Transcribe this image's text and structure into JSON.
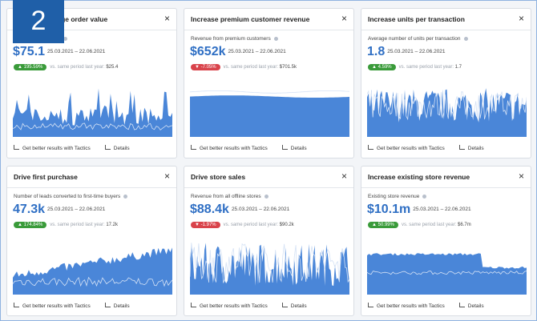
{
  "badge": "2",
  "shared": {
    "comparison_label": "vs. same period last year:",
    "tactics": "Get better results with Tactics",
    "details": "Details",
    "close": "×"
  },
  "cards": [
    {
      "title": "Increase average order value",
      "metric_label": "Average order value",
      "value": "$75.1",
      "period": "25.03.2021 – 22.06.2021",
      "change": "195.59%",
      "trend": "up",
      "comparison_value": "$25.4"
    },
    {
      "title": "Increase premium customer revenue",
      "metric_label": "Revenue from premium customers",
      "value": "$652k",
      "period": "25.03.2021 – 22.06.2021",
      "change": "-7.05%",
      "trend": "down",
      "comparison_value": "$701.5k"
    },
    {
      "title": "Increase units per transaction",
      "metric_label": "Average number of units per transaction",
      "value": "1.8",
      "period": "25.03.2021 – 22.06.2021",
      "change": "4.59%",
      "trend": "up",
      "comparison_value": "1.7"
    },
    {
      "title": "Drive first purchase",
      "metric_label": "Number of leads converted to first-time buyers",
      "value": "47.3k",
      "period": "25.03.2021 – 22.06.2021",
      "change": "174.84%",
      "trend": "up",
      "comparison_value": "17.2k"
    },
    {
      "title": "Drive store sales",
      "metric_label": "Revenue from all offline stores",
      "value": "$88.4k",
      "period": "25.03.2021 – 22.06.2021",
      "change": "-1.97%",
      "trend": "down",
      "comparison_value": "$90.2k"
    },
    {
      "title": "Increase existing store revenue",
      "metric_label": "Existing store revenue",
      "value": "$10.1m",
      "period": "25.03.2021 – 22.06.2021",
      "change": "50.99%",
      "trend": "up",
      "comparison_value": "$6.7m"
    }
  ]
}
